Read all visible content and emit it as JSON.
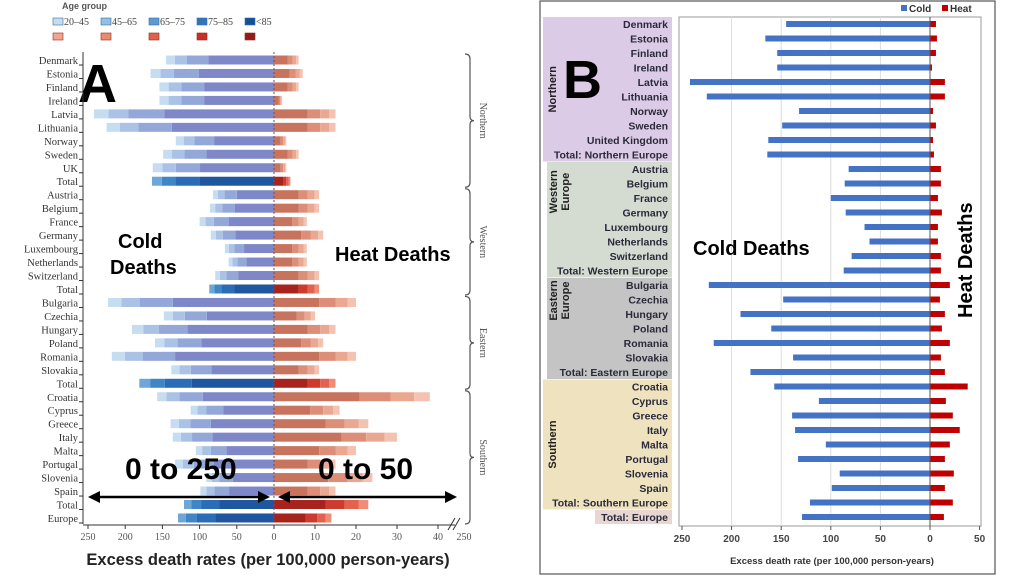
{
  "colors": {
    "cold_b": "#4472c4",
    "heat_b": "#c00000",
    "cold_a": [
      "#7e88c8",
      "#93a8d8",
      "#a9c2e6",
      "#c6dcf1"
    ],
    "heat_a": [
      "#c8735e",
      "#dc8e78",
      "#eaa892",
      "#f4c2b0"
    ],
    "cold_a_total": [
      "#1f56a0",
      "#2a6cb5",
      "#3f86c6",
      "#6ea6d8"
    ],
    "heat_a_total": [
      "#a8231c",
      "#cf3a2e",
      "#e4614f",
      "#f08b78"
    ],
    "region_northern": "#dccbe6",
    "region_western": "#d4dbd0",
    "region_eastern": "#c4c4c4",
    "region_southern": "#efe3bf",
    "region_europe": "#e7d6d2"
  },
  "chart_data": [
    {
      "type": "bar",
      "panel": "A",
      "panel_letter": "A",
      "legend_title": "Age group",
      "legend": [
        "20–45",
        "45–65",
        "65–75",
        "75–85",
        "<85"
      ],
      "categories": [
        "Denmark",
        "Estonia",
        "Finland",
        "Ireland",
        "Latvia",
        "Lithuania",
        "Norway",
        "Sweden",
        "UK",
        "Total",
        "Austria",
        "Belgium",
        "France",
        "Germany",
        "Luxembourg",
        "Netherlands",
        "Switzerland",
        "Total",
        "Bulgaria",
        "Czechia",
        "Hungary",
        "Poland",
        "Romania",
        "Slovakia",
        "Total",
        "Croatia",
        "Cyprus",
        "Greece",
        "Italy",
        "Malta",
        "Portugal",
        "Slovenia",
        "Spain",
        "Total",
        "Europe"
      ],
      "regions": [
        {
          "label": "Northern",
          "from": 0,
          "to": 9
        },
        {
          "label": "Western",
          "from": 10,
          "to": 17
        },
        {
          "label": "Eastern",
          "from": 18,
          "to": 24
        },
        {
          "label": "Southern",
          "from": 25,
          "to": 34
        }
      ],
      "cold_values": [
        145,
        166,
        154,
        154,
        242,
        225,
        132,
        149,
        163,
        164,
        82,
        86,
        100,
        85,
        66,
        61,
        79,
        87,
        223,
        148,
        191,
        160,
        218,
        138,
        181,
        157,
        112,
        139,
        136,
        105,
        133,
        91,
        99,
        121,
        129
      ],
      "heat_values": [
        6,
        7,
        6,
        2,
        15,
        15,
        3,
        6,
        3,
        4,
        11,
        11,
        8,
        12,
        8,
        8,
        11,
        11,
        20,
        10,
        15,
        12,
        20,
        11,
        15,
        38,
        16,
        23,
        30,
        20,
        15,
        24,
        15,
        23,
        14
      ],
      "cold_ticks": [
        250,
        200,
        150,
        100,
        50,
        0
      ],
      "heat_ticks": [
        10,
        20,
        30,
        40
      ],
      "break_tick": "250",
      "xlabel": "Excess death rates (per 100,000 person-years)",
      "annotations": {
        "cold": "Cold\nDeaths",
        "cold_line1": "Cold",
        "cold_line2": "Deaths",
        "heat": "Heat Deaths",
        "cold_range": "0 to 250",
        "heat_range": "0 to 50"
      },
      "xlim_cold": [
        0,
        250
      ],
      "xlim_heat": [
        0,
        45
      ]
    },
    {
      "type": "bar",
      "panel": "B",
      "panel_letter": "B",
      "categories": [
        "Denmark",
        "Estonia",
        "Finland",
        "Ireland",
        "Latvia",
        "Lithuania",
        "Norway",
        "Sweden",
        "United Kingdom",
        "Total: Northern Europe",
        "Austria",
        "Belgium",
        "France",
        "Germany",
        "Luxembourg",
        "Netherlands",
        "Switzerland",
        "Total: Western Europe",
        "Bulgaria",
        "Czechia",
        "Hungary",
        "Poland",
        "Romania",
        "Slovakia",
        "Total: Eastern Europe",
        "Croatia",
        "Cyprus",
        "Greece",
        "Italy",
        "Malta",
        "Portugal",
        "Slovenia",
        "Spain",
        "Total: Southern Europe",
        "Total: Europe"
      ],
      "regions": [
        {
          "label": "Northern",
          "from": 0,
          "to": 9,
          "color_key": "region_northern"
        },
        {
          "label": "Western Europe",
          "from": 10,
          "to": 17,
          "color_key": "region_western"
        },
        {
          "label": "Eastern Europe",
          "from": 18,
          "to": 24,
          "color_key": "region_eastern"
        },
        {
          "label": "Southern",
          "from": 25,
          "to": 33,
          "color_key": "region_southern"
        }
      ],
      "series": [
        {
          "name": "Cold",
          "values": [
            145,
            166,
            154,
            154,
            242,
            225,
            132,
            149,
            163,
            164,
            82,
            86,
            100,
            85,
            66,
            61,
            79,
            87,
            223,
            148,
            191,
            160,
            218,
            138,
            181,
            157,
            112,
            139,
            136,
            105,
            133,
            91,
            99,
            121,
            129
          ]
        },
        {
          "name": "Heat",
          "values": [
            6,
            7,
            6,
            2,
            15,
            15,
            3,
            6,
            3,
            4,
            11,
            11,
            8,
            12,
            8,
            8,
            11,
            11,
            20,
            10,
            15,
            12,
            20,
            11,
            15,
            38,
            16,
            23,
            30,
            20,
            15,
            24,
            15,
            23,
            14
          ]
        }
      ],
      "xticks": [
        "250",
        "200",
        "150",
        "100",
        "50",
        "0",
        "50"
      ],
      "xlim": [
        -250,
        50
      ],
      "grid": true,
      "legend_position": "top-right",
      "xlabel": "Excess death rate (per 100,000 person-years)",
      "annotations": {
        "cold": "Cold Deaths",
        "heat": "Heat Deaths"
      }
    }
  ]
}
